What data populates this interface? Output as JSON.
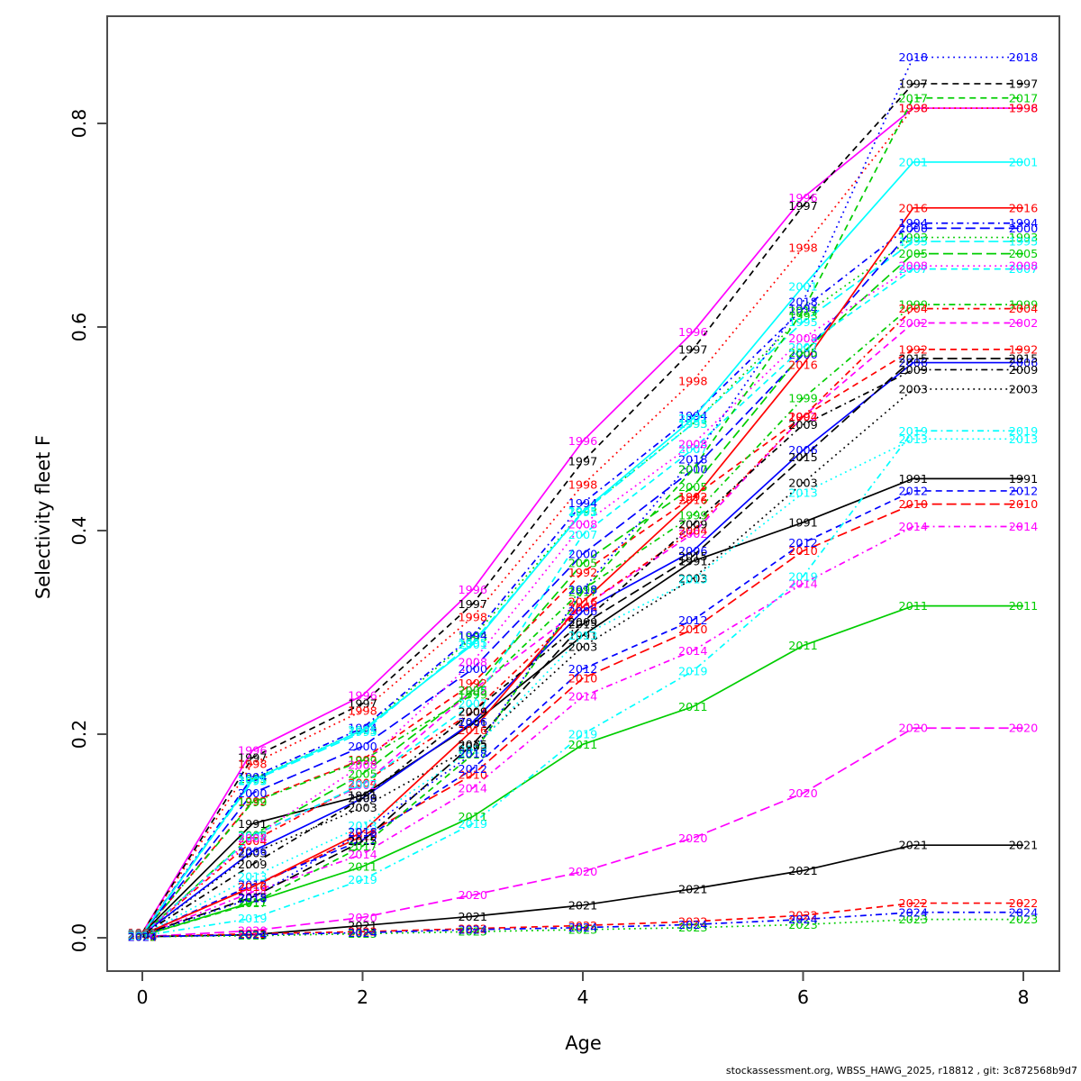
{
  "figure": {
    "background": "#ffffff",
    "footer_text": "stockassessment.org, WBSS_HAWG_2025, r18812 , git: 3c872568b9d7"
  },
  "chart_data": {
    "type": "line",
    "title": "",
    "xlabel": "Age",
    "ylabel": "Selectivity fleet F",
    "x": [
      0,
      1,
      2,
      3,
      4,
      5,
      6,
      7,
      8
    ],
    "xtick_labels": [
      "0",
      "2",
      "4",
      "6",
      "8"
    ],
    "xticks": [
      0,
      2,
      4,
      6,
      8
    ],
    "ytick_labels": [
      "0.0",
      "0.2",
      "0.4",
      "0.6",
      "0.8"
    ],
    "yticks": [
      0.0,
      0.2,
      0.4,
      0.6,
      0.8
    ],
    "xlim": [
      -0.32,
      8.33
    ],
    "ylim": [
      -0.035,
      0.905
    ],
    "grid": false,
    "legend": "none (each curve labeled with its year at every data point)",
    "label_style": "year text plotted at each age point in series color",
    "palette": {
      "black": "#000000",
      "red": "#FF0000",
      "green": "#00CD00",
      "blue": "#0000FF",
      "cyan": "#00FFFF",
      "magenta": "#FF00FF"
    },
    "series": [
      {
        "name": "1991",
        "color": "#000000",
        "linetype": "solid",
        "values": [
          0.004,
          0.112,
          0.14,
          0.21,
          0.297,
          0.37,
          0.408,
          0.451,
          0.451
        ]
      },
      {
        "name": "1992",
        "color": "#FF0000",
        "linetype": "dashed",
        "values": [
          0.004,
          0.134,
          0.175,
          0.25,
          0.359,
          0.433,
          0.512,
          0.578,
          0.578
        ]
      },
      {
        "name": "1993",
        "color": "#00CD00",
        "linetype": "dotted",
        "values": [
          0.004,
          0.156,
          0.204,
          0.295,
          0.419,
          0.505,
          0.611,
          0.688,
          0.688
        ]
      },
      {
        "name": "1994",
        "color": "#0000FF",
        "linetype": "dotdash",
        "values": [
          0.004,
          0.158,
          0.206,
          0.297,
          0.427,
          0.513,
          0.618,
          0.702,
          0.702
        ]
      },
      {
        "name": "1995",
        "color": "#00FFFF",
        "linetype": "longdash",
        "values": [
          0.004,
          0.154,
          0.202,
          0.29,
          0.418,
          0.505,
          0.605,
          0.684,
          0.684
        ]
      },
      {
        "name": "1996",
        "color": "#FF00FF",
        "linetype": "solid",
        "values": [
          0.005,
          0.184,
          0.238,
          0.342,
          0.488,
          0.595,
          0.727,
          0.815,
          0.815
        ]
      },
      {
        "name": "1997",
        "color": "#000000",
        "linetype": "dashed",
        "values": [
          0.005,
          0.177,
          0.23,
          0.328,
          0.468,
          0.578,
          0.719,
          0.839,
          0.839
        ]
      },
      {
        "name": "1998",
        "color": "#FF0000",
        "linetype": "dotted",
        "values": [
          0.005,
          0.171,
          0.223,
          0.315,
          0.445,
          0.547,
          0.678,
          0.815,
          0.815
        ]
      },
      {
        "name": "1999",
        "color": "#00CD00",
        "linetype": "dotdash",
        "values": [
          0.004,
          0.133,
          0.174,
          0.239,
          0.342,
          0.415,
          0.53,
          0.622,
          0.622
        ]
      },
      {
        "name": "2000",
        "color": "#0000FF",
        "linetype": "longdash",
        "values": [
          0.004,
          0.142,
          0.188,
          0.264,
          0.377,
          0.46,
          0.573,
          0.697,
          0.697
        ]
      },
      {
        "name": "2001",
        "color": "#00FFFF",
        "linetype": "solid",
        "values": [
          0.004,
          0.155,
          0.204,
          0.288,
          0.419,
          0.51,
          0.64,
          0.762,
          0.762
        ]
      },
      {
        "name": "2002",
        "color": "#FF00FF",
        "linetype": "dashed",
        "values": [
          0.003,
          0.1,
          0.15,
          0.243,
          0.325,
          0.397,
          0.512,
          0.604,
          0.604
        ]
      },
      {
        "name": "2003",
        "color": "#000000",
        "linetype": "dotted",
        "values": [
          0.003,
          0.083,
          0.128,
          0.188,
          0.286,
          0.353,
          0.447,
          0.539,
          0.539
        ]
      },
      {
        "name": "2004",
        "color": "#FF0000",
        "linetype": "dotdash",
        "values": [
          0.003,
          0.095,
          0.152,
          0.222,
          0.325,
          0.4,
          0.512,
          0.618,
          0.618
        ]
      },
      {
        "name": "2005",
        "color": "#00CD00",
        "linetype": "longdash",
        "values": [
          0.003,
          0.101,
          0.161,
          0.243,
          0.368,
          0.443,
          0.575,
          0.672,
          0.672
        ]
      },
      {
        "name": "2006",
        "color": "#0000FF",
        "linetype": "solid",
        "values": [
          0.003,
          0.085,
          0.137,
          0.212,
          0.321,
          0.38,
          0.479,
          0.565,
          0.565
        ]
      },
      {
        "name": "2007",
        "color": "#00FFFF",
        "linetype": "dashed",
        "values": [
          0.003,
          0.1,
          0.151,
          0.23,
          0.396,
          0.48,
          0.58,
          0.657,
          0.657
        ]
      },
      {
        "name": "2008",
        "color": "#FF00FF",
        "linetype": "dotted",
        "values": [
          0.003,
          0.098,
          0.17,
          0.271,
          0.406,
          0.485,
          0.589,
          0.66,
          0.66
        ]
      },
      {
        "name": "2009",
        "color": "#000000",
        "linetype": "dotdash",
        "values": [
          0.003,
          0.072,
          0.137,
          0.222,
          0.31,
          0.406,
          0.504,
          0.558,
          0.558
        ]
      },
      {
        "name": "2010",
        "color": "#FF0000",
        "linetype": "longdash",
        "values": [
          0.003,
          0.05,
          0.1,
          0.16,
          0.255,
          0.303,
          0.38,
          0.426,
          0.426
        ]
      },
      {
        "name": "2011",
        "color": "#00CD00",
        "linetype": "solid",
        "values": [
          0.002,
          0.035,
          0.07,
          0.119,
          0.19,
          0.227,
          0.287,
          0.326,
          0.326
        ]
      },
      {
        "name": "2012",
        "color": "#0000FF",
        "linetype": "dashed",
        "values": [
          0.003,
          0.052,
          0.096,
          0.166,
          0.264,
          0.312,
          0.388,
          0.439,
          0.439
        ]
      },
      {
        "name": "2013",
        "color": "#00FFFF",
        "linetype": "dotted",
        "values": [
          0.003,
          0.06,
          0.11,
          0.185,
          0.297,
          0.352,
          0.437,
          0.49,
          0.49
        ]
      },
      {
        "name": "2014",
        "color": "#FF00FF",
        "linetype": "dotdash",
        "values": [
          0.002,
          0.045,
          0.082,
          0.147,
          0.237,
          0.282,
          0.348,
          0.404,
          0.404
        ]
      },
      {
        "name": "2015",
        "color": "#000000",
        "linetype": "longdash",
        "values": [
          0.003,
          0.04,
          0.095,
          0.19,
          0.308,
          0.375,
          0.472,
          0.569,
          0.569
        ]
      },
      {
        "name": "2016",
        "color": "#FF0000",
        "linetype": "solid",
        "values": [
          0.003,
          0.05,
          0.104,
          0.204,
          0.33,
          0.43,
          0.563,
          0.717,
          0.717
        ]
      },
      {
        "name": "2017",
        "color": "#00CD00",
        "linetype": "dashed",
        "values": [
          0.002,
          0.034,
          0.09,
          0.18,
          0.34,
          0.46,
          0.616,
          0.825,
          0.825
        ]
      },
      {
        "name": "2018",
        "color": "#0000FF",
        "linetype": "dotted",
        "values": [
          0.002,
          0.039,
          0.104,
          0.181,
          0.342,
          0.47,
          0.625,
          0.865,
          0.865
        ]
      },
      {
        "name": "2019",
        "color": "#00FFFF",
        "linetype": "dotdash",
        "values": [
          0.002,
          0.019,
          0.057,
          0.112,
          0.2,
          0.262,
          0.355,
          0.498,
          0.498
        ]
      },
      {
        "name": "2020",
        "color": "#FF00FF",
        "linetype": "longdash",
        "values": [
          0.001,
          0.007,
          0.02,
          0.042,
          0.065,
          0.098,
          0.142,
          0.206,
          0.206
        ]
      },
      {
        "name": "2021",
        "color": "#000000",
        "linetype": "solid",
        "values": [
          0.001,
          0.003,
          0.012,
          0.021,
          0.032,
          0.048,
          0.066,
          0.091,
          0.091
        ]
      },
      {
        "name": "2022",
        "color": "#FF0000",
        "linetype": "dashed",
        "values": [
          0.001,
          0.004,
          0.006,
          0.009,
          0.012,
          0.016,
          0.022,
          0.034,
          0.034
        ]
      },
      {
        "name": "2023",
        "color": "#00CD00",
        "linetype": "dotted",
        "values": [
          0.001,
          0.002,
          0.004,
          0.006,
          0.008,
          0.01,
          0.013,
          0.018,
          0.018
        ]
      },
      {
        "name": "2024",
        "color": "#0000FF",
        "linetype": "dotdash",
        "values": [
          0.001,
          0.003,
          0.005,
          0.008,
          0.01,
          0.013,
          0.018,
          0.025,
          0.025
        ]
      }
    ]
  }
}
